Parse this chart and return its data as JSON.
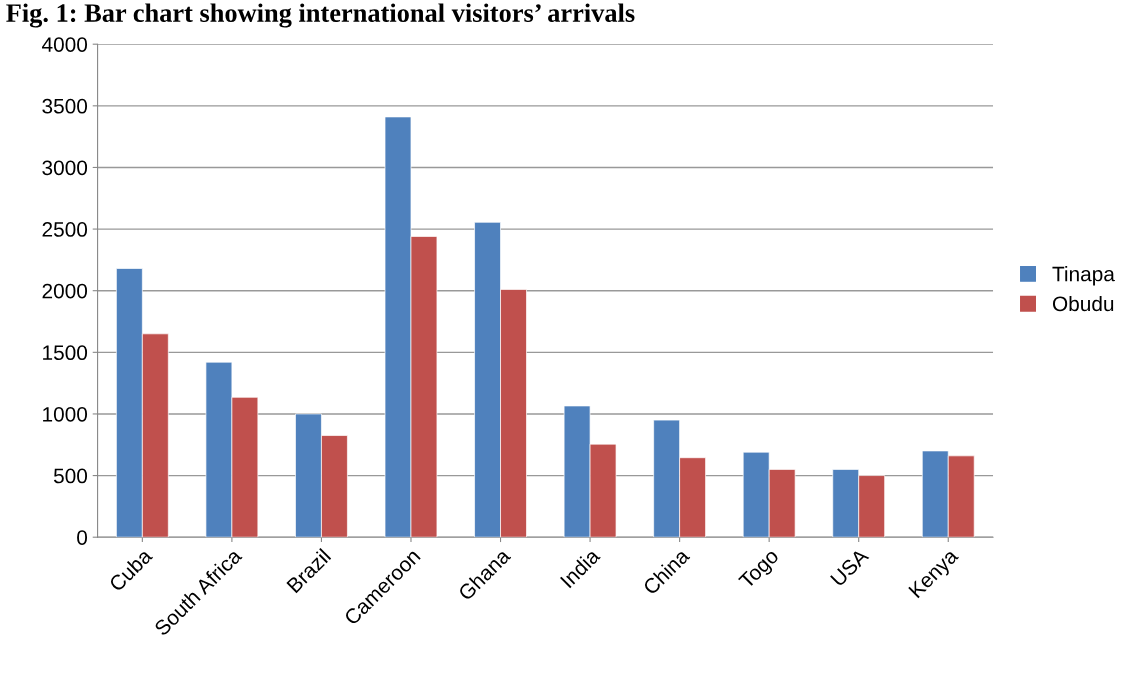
{
  "chart_data": {
    "type": "bar",
    "title": "Fig. 1: Bar chart showing international visitors’ arrivals",
    "categories": [
      "Cuba",
      "South Africa",
      "Brazil",
      "Cameroon",
      "Ghana",
      "India",
      "China",
      "Togo",
      "USA",
      "Kenya"
    ],
    "series": [
      {
        "name": "Tinapa",
        "color": "#4f81bd",
        "values": [
          2180,
          1420,
          1000,
          3410,
          2555,
          1065,
          950,
          690,
          550,
          700
        ]
      },
      {
        "name": "Obudu",
        "color": "#c0504d",
        "values": [
          1650,
          1135,
          825,
          2440,
          2010,
          755,
          645,
          550,
          500,
          660
        ]
      }
    ],
    "ylim": [
      0,
      4000
    ],
    "yticks": [
      0,
      500,
      1000,
      1500,
      2000,
      2500,
      3000,
      3500,
      4000
    ],
    "grid": "y",
    "legend": "right"
  }
}
